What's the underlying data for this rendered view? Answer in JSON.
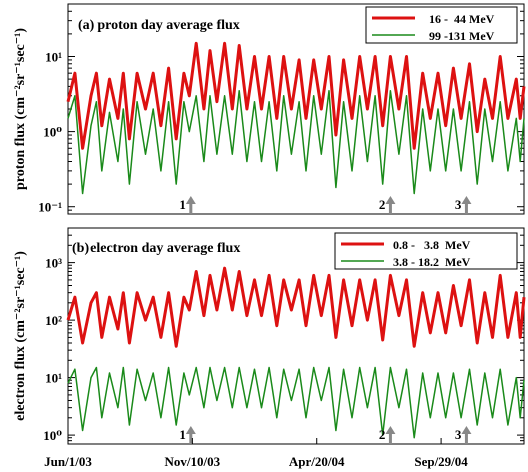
{
  "chart_data": [
    {
      "type": "line",
      "panel_label": "(a)",
      "title": "proton day average flux",
      "ylabel": "proton flux (cm⁻²sr⁻¹sec⁻¹)",
      "yscale": "log",
      "ylim": [
        0.08,
        50
      ],
      "yticks": [
        {
          "value": 0.1,
          "label": "10⁻¹"
        },
        {
          "value": 1,
          "label": "10⁰"
        },
        {
          "value": 10,
          "label": "10¹"
        }
      ],
      "xlim": [
        "2003-06-01",
        "2005-01-15"
      ],
      "x_gaps": [
        [
          "2003-10-31",
          "2003-11-05"
        ],
        [
          "2005-01-07",
          "2005-01-09"
        ]
      ],
      "legend_position": "top-right",
      "grid": false,
      "series": [
        {
          "name": "16 -  44 MeV",
          "color": "#dd1111",
          "stroke_width": 3,
          "x": [
            "2003-06-01",
            "2003-06-10",
            "2003-06-20",
            "2003-07-01",
            "2003-07-08",
            "2003-07-15",
            "2003-07-25",
            "2003-08-05",
            "2003-08-12",
            "2003-08-20",
            "2003-08-30",
            "2003-09-10",
            "2003-09-20",
            "2003-09-30",
            "2003-10-10",
            "2003-10-20",
            "2003-10-30",
            "2003-11-06",
            "2003-11-15",
            "2003-11-25",
            "2003-12-03",
            "2003-12-12",
            "2003-12-22",
            "2004-01-01",
            "2004-01-10",
            "2004-01-20",
            "2004-01-30",
            "2004-02-08",
            "2004-02-18",
            "2004-02-28",
            "2004-03-08",
            "2004-03-18",
            "2004-03-28",
            "2004-04-06",
            "2004-04-16",
            "2004-04-26",
            "2004-05-06",
            "2004-05-15",
            "2004-05-25",
            "2004-06-05",
            "2004-06-15",
            "2004-06-25",
            "2004-07-05",
            "2004-07-15",
            "2004-07-25",
            "2004-08-05",
            "2004-08-15",
            "2004-08-25",
            "2004-09-05",
            "2004-09-15",
            "2004-09-25",
            "2004-10-05",
            "2004-10-15",
            "2004-10-25",
            "2004-11-05",
            "2004-11-15",
            "2004-11-25",
            "2004-12-05",
            "2004-12-15",
            "2004-12-25",
            "2005-01-05",
            "2005-01-10",
            "2005-01-15"
          ],
          "y": [
            2.5,
            6,
            0.6,
            3,
            6,
            1.2,
            5,
            1.5,
            6,
            0.8,
            6,
            2,
            6,
            1.2,
            7,
            0.8,
            6,
            3,
            15,
            2,
            12,
            2.5,
            15,
            2,
            14,
            2,
            10,
            2,
            10,
            1.5,
            10,
            2,
            9,
            1.5,
            9,
            2,
            10,
            0.9,
            9,
            1.5,
            10,
            2,
            10,
            1.2,
            10,
            2,
            10,
            0.6,
            6,
            1.5,
            6,
            1.2,
            7,
            1.5,
            8,
            1,
            5,
            1.5,
            10,
            1.5,
            5,
            1.5,
            4
          ]
        },
        {
          "name": "99 -131 MeV",
          "color": "#1a8a1a",
          "stroke_width": 1.5,
          "x": [
            "2003-06-01",
            "2003-06-10",
            "2003-06-20",
            "2003-07-01",
            "2003-07-08",
            "2003-07-15",
            "2003-07-25",
            "2003-08-05",
            "2003-08-12",
            "2003-08-20",
            "2003-08-30",
            "2003-09-10",
            "2003-09-20",
            "2003-09-30",
            "2003-10-10",
            "2003-10-20",
            "2003-10-30",
            "2003-11-06",
            "2003-11-15",
            "2003-11-25",
            "2003-12-03",
            "2003-12-12",
            "2003-12-22",
            "2004-01-01",
            "2004-01-10",
            "2004-01-20",
            "2004-01-30",
            "2004-02-08",
            "2004-02-18",
            "2004-02-28",
            "2004-03-08",
            "2004-03-18",
            "2004-03-28",
            "2004-04-06",
            "2004-04-16",
            "2004-04-26",
            "2004-05-06",
            "2004-05-15",
            "2004-05-25",
            "2004-06-05",
            "2004-06-15",
            "2004-06-25",
            "2004-07-05",
            "2004-07-15",
            "2004-07-25",
            "2004-08-05",
            "2004-08-15",
            "2004-08-25",
            "2004-09-05",
            "2004-09-15",
            "2004-09-25",
            "2004-10-05",
            "2004-10-15",
            "2004-10-25",
            "2004-11-05",
            "2004-11-15",
            "2004-11-25",
            "2004-12-05",
            "2004-12-15",
            "2004-12-25",
            "2005-01-05",
            "2005-01-10",
            "2005-01-15"
          ],
          "y": [
            1.5,
            3,
            0.15,
            1.2,
            2.5,
            0.3,
            1.8,
            0.4,
            2,
            0.2,
            2.5,
            0.5,
            2,
            0.3,
            2.5,
            0.2,
            2.5,
            1,
            3,
            0.4,
            3,
            0.5,
            3,
            0.5,
            3.5,
            0.4,
            2.5,
            0.4,
            2.5,
            0.3,
            3,
            0.5,
            2.5,
            0.3,
            3,
            0.5,
            3.5,
            0.18,
            2.5,
            0.3,
            3,
            0.4,
            3,
            0.2,
            3.5,
            0.5,
            3,
            0.15,
            2,
            0.3,
            2,
            0.3,
            2,
            0.3,
            2.5,
            0.2,
            2,
            0.4,
            2.5,
            0.3,
            1.5,
            0.4,
            1.5
          ]
        }
      ],
      "events": [
        {
          "label": "1",
          "x": "2003-11-08"
        },
        {
          "label": "2",
          "x": "2004-07-25"
        },
        {
          "label": "3",
          "x": "2004-11-01"
        }
      ]
    },
    {
      "type": "line",
      "panel_label": "(b)",
      "title": "electron day average flux",
      "ylabel": "electron flux (cm⁻²sr⁻¹sec⁻¹)",
      "yscale": "log",
      "ylim": [
        0.7,
        4000
      ],
      "yticks": [
        {
          "value": 1,
          "label": "10⁰"
        },
        {
          "value": 10,
          "label": "10¹"
        },
        {
          "value": 100,
          "label": "10²"
        },
        {
          "value": 1000,
          "label": "10³"
        }
      ],
      "xlim": [
        "2003-06-01",
        "2005-01-15"
      ],
      "x_gaps": [
        [
          "2003-10-31",
          "2003-11-05"
        ],
        [
          "2005-01-07",
          "2005-01-09"
        ]
      ],
      "xticks": [
        {
          "value": "2003-06-01",
          "label": "Jun/1/03"
        },
        {
          "value": "2003-11-10",
          "label": "Nov/10/03"
        },
        {
          "value": "2004-04-20",
          "label": "Apr/20/04"
        },
        {
          "value": "2004-09-29",
          "label": "Sep/29/04"
        }
      ],
      "legend_position": "top-right",
      "grid": false,
      "series": [
        {
          "name": "0.8 -   3.8  MeV",
          "color": "#dd1111",
          "stroke_width": 3,
          "x": [
            "2003-06-01",
            "2003-06-10",
            "2003-06-20",
            "2003-07-01",
            "2003-07-08",
            "2003-07-15",
            "2003-07-25",
            "2003-08-05",
            "2003-08-12",
            "2003-08-20",
            "2003-08-30",
            "2003-09-10",
            "2003-09-20",
            "2003-09-30",
            "2003-10-10",
            "2003-10-20",
            "2003-10-30",
            "2003-11-06",
            "2003-11-15",
            "2003-11-25",
            "2003-12-03",
            "2003-12-12",
            "2003-12-22",
            "2004-01-01",
            "2004-01-10",
            "2004-01-20",
            "2004-01-30",
            "2004-02-08",
            "2004-02-18",
            "2004-02-28",
            "2004-03-08",
            "2004-03-18",
            "2004-03-28",
            "2004-04-06",
            "2004-04-16",
            "2004-04-26",
            "2004-05-06",
            "2004-05-15",
            "2004-05-25",
            "2004-06-05",
            "2004-06-15",
            "2004-06-25",
            "2004-07-05",
            "2004-07-15",
            "2004-07-25",
            "2004-08-05",
            "2004-08-15",
            "2004-08-25",
            "2004-09-05",
            "2004-09-15",
            "2004-09-25",
            "2004-10-05",
            "2004-10-15",
            "2004-10-25",
            "2004-11-05",
            "2004-11-15",
            "2004-11-25",
            "2004-12-05",
            "2004-12-15",
            "2004-12-25",
            "2005-01-05",
            "2005-01-10",
            "2005-01-15"
          ],
          "y": [
            100,
            250,
            40,
            200,
            300,
            50,
            250,
            70,
            300,
            40,
            300,
            100,
            250,
            50,
            300,
            35,
            250,
            150,
            700,
            120,
            600,
            150,
            800,
            150,
            700,
            120,
            500,
            120,
            600,
            80,
            500,
            150,
            500,
            80,
            600,
            120,
            600,
            50,
            500,
            80,
            500,
            100,
            500,
            45,
            600,
            120,
            500,
            35,
            300,
            60,
            300,
            60,
            400,
            80,
            500,
            40,
            300,
            50,
            600,
            50,
            300,
            50,
            250
          ]
        },
        {
          "name": "3.8 - 18.2  MeV",
          "color": "#1a8a1a",
          "stroke_width": 1.5,
          "x": [
            "2003-06-01",
            "2003-06-10",
            "2003-06-20",
            "2003-07-01",
            "2003-07-08",
            "2003-07-15",
            "2003-07-25",
            "2003-08-05",
            "2003-08-12",
            "2003-08-20",
            "2003-08-30",
            "2003-09-10",
            "2003-09-20",
            "2003-09-30",
            "2003-10-10",
            "2003-10-20",
            "2003-10-30",
            "2003-11-06",
            "2003-11-15",
            "2003-11-25",
            "2003-12-03",
            "2003-12-12",
            "2003-12-22",
            "2004-01-01",
            "2004-01-10",
            "2004-01-20",
            "2004-01-30",
            "2004-02-08",
            "2004-02-18",
            "2004-02-28",
            "2004-03-08",
            "2004-03-18",
            "2004-03-28",
            "2004-04-06",
            "2004-04-16",
            "2004-04-26",
            "2004-05-06",
            "2004-05-15",
            "2004-05-25",
            "2004-06-05",
            "2004-06-15",
            "2004-06-25",
            "2004-07-05",
            "2004-07-15",
            "2004-07-25",
            "2004-08-05",
            "2004-08-15",
            "2004-08-25",
            "2004-09-05",
            "2004-09-15",
            "2004-09-25",
            "2004-10-05",
            "2004-10-15",
            "2004-10-25",
            "2004-11-05",
            "2004-11-15",
            "2004-11-25",
            "2004-12-05",
            "2004-12-15",
            "2004-12-25",
            "2005-01-05",
            "2005-01-10",
            "2005-01-15"
          ],
          "y": [
            8,
            14,
            1.2,
            10,
            15,
            2,
            12,
            3,
            15,
            1.5,
            14,
            4,
            12,
            2,
            15,
            1.5,
            12,
            5,
            15,
            3,
            15,
            4,
            15,
            3,
            15,
            3,
            14,
            3,
            15,
            2,
            14,
            4,
            14,
            2,
            15,
            4,
            15,
            1.2,
            14,
            2,
            15,
            3,
            15,
            1,
            15,
            3,
            14,
            0.9,
            12,
            2,
            12,
            2,
            12,
            2,
            14,
            1.5,
            12,
            2,
            14,
            1.5,
            10,
            2,
            9
          ]
        }
      ],
      "events": [
        {
          "label": "1",
          "x": "2003-11-08"
        },
        {
          "label": "2",
          "x": "2004-07-25"
        },
        {
          "label": "3",
          "x": "2004-11-01"
        }
      ]
    }
  ]
}
